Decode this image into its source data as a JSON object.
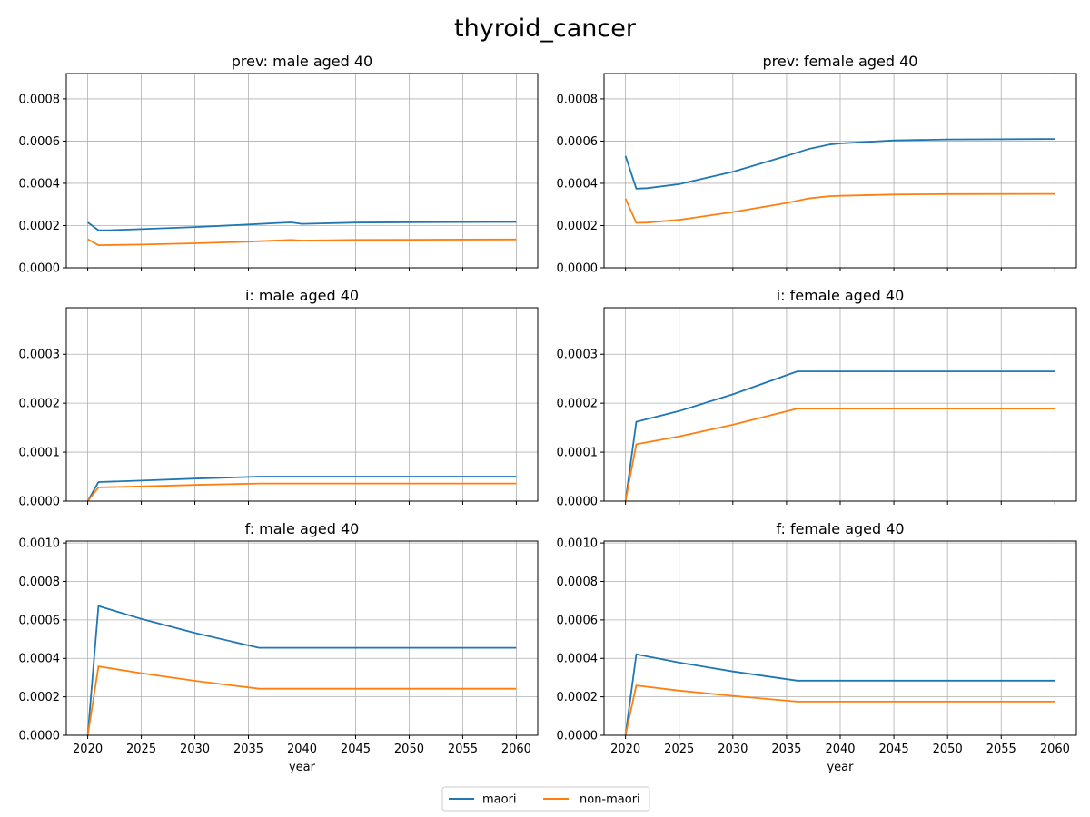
{
  "figure": {
    "title": "thyroid_cancer"
  },
  "colors": {
    "maori": "#1f77b4",
    "non_maori": "#ff7f0e",
    "grid": "#b0b0b0",
    "axes": "#000000"
  },
  "legend": {
    "placement": "bottom-center",
    "entries": [
      {
        "label": "maori",
        "color": "#1f77b4"
      },
      {
        "label": "non-maori",
        "color": "#ff7f0e"
      }
    ]
  },
  "chart_data": [
    {
      "type": "line",
      "title": "prev: male aged 40",
      "xlabel": "",
      "ylabel": "",
      "xlim": [
        2018,
        2062
      ],
      "ylim": [
        0,
        0.00092
      ],
      "xticks": [
        2020,
        2025,
        2030,
        2035,
        2040,
        2045,
        2050,
        2055,
        2060
      ],
      "yticks": [
        0,
        0.0002,
        0.0004,
        0.0006,
        0.0008
      ],
      "ytick_labels": [
        "0.0000",
        "0.0002",
        "0.0004",
        "0.0006",
        "0.0008"
      ],
      "show_xtick_labels": false,
      "grid": true,
      "series": [
        {
          "name": "maori",
          "color": "#1f77b4",
          "x": [
            2020,
            2021,
            2022,
            2025,
            2030,
            2035,
            2038,
            2039,
            2040,
            2045,
            2050,
            2060
          ],
          "y": [
            0.000215,
            0.000178,
            0.000178,
            0.000183,
            0.000193,
            0.000205,
            0.000213,
            0.000215,
            0.000208,
            0.000214,
            0.000216,
            0.000217
          ]
        },
        {
          "name": "non-maori",
          "color": "#ff7f0e",
          "x": [
            2020,
            2021,
            2025,
            2030,
            2035,
            2039,
            2040,
            2045,
            2050,
            2060
          ],
          "y": [
            0.000135,
            0.000107,
            0.00011,
            0.000116,
            0.000124,
            0.000132,
            0.000129,
            0.000132,
            0.000133,
            0.000134
          ]
        }
      ]
    },
    {
      "type": "line",
      "title": "prev: female aged 40",
      "xlabel": "",
      "ylabel": "",
      "xlim": [
        2018,
        2062
      ],
      "ylim": [
        0,
        0.00092
      ],
      "xticks": [
        2020,
        2025,
        2030,
        2035,
        2040,
        2045,
        2050,
        2055,
        2060
      ],
      "yticks": [
        0,
        0.0002,
        0.0004,
        0.0006,
        0.0008
      ],
      "ytick_labels": [
        "0.0000",
        "0.0002",
        "0.0004",
        "0.0006",
        "0.0008"
      ],
      "show_xtick_labels": false,
      "grid": true,
      "series": [
        {
          "name": "maori",
          "color": "#1f77b4",
          "x": [
            2020,
            2021,
            2022,
            2025,
            2030,
            2035,
            2037,
            2039,
            2040,
            2045,
            2050,
            2060
          ],
          "y": [
            0.00053,
            0.000375,
            0.000377,
            0.000396,
            0.000455,
            0.00053,
            0.000562,
            0.000584,
            0.000589,
            0.000603,
            0.000608,
            0.00061
          ]
        },
        {
          "name": "non-maori",
          "color": "#ff7f0e",
          "x": [
            2020,
            2021,
            2022,
            2025,
            2030,
            2035,
            2037,
            2039,
            2040,
            2045,
            2050,
            2060
          ],
          "y": [
            0.000327,
            0.000213,
            0.000214,
            0.000227,
            0.000264,
            0.000307,
            0.000328,
            0.000339,
            0.000341,
            0.000347,
            0.000349,
            0.00035
          ]
        }
      ]
    },
    {
      "type": "line",
      "title": "i: male aged 40",
      "xlabel": "",
      "ylabel": "",
      "xlim": [
        2018,
        2062
      ],
      "ylim": [
        0,
        0.000395
      ],
      "xticks": [
        2020,
        2025,
        2030,
        2035,
        2040,
        2045,
        2050,
        2055,
        2060
      ],
      "yticks": [
        0,
        0.0001,
        0.0002,
        0.0003
      ],
      "ytick_labels": [
        "0.0000",
        "0.0001",
        "0.0002",
        "0.0003"
      ],
      "show_xtick_labels": false,
      "grid": true,
      "series": [
        {
          "name": "maori",
          "color": "#1f77b4",
          "x": [
            2020,
            2021,
            2025,
            2030,
            2036,
            2040,
            2050,
            2060
          ],
          "y": [
            0,
            3.9e-05,
            4.2e-05,
            4.6e-05,
            5e-05,
            5e-05,
            5e-05,
            5e-05
          ]
        },
        {
          "name": "non-maori",
          "color": "#ff7f0e",
          "x": [
            2020,
            2021,
            2025,
            2030,
            2036,
            2040,
            2050,
            2060
          ],
          "y": [
            0,
            2.8e-05,
            3e-05,
            3.3e-05,
            3.6e-05,
            3.6e-05,
            3.6e-05,
            3.6e-05
          ]
        }
      ]
    },
    {
      "type": "line",
      "title": "i: female aged 40",
      "xlabel": "",
      "ylabel": "",
      "xlim": [
        2018,
        2062
      ],
      "ylim": [
        0,
        0.000395
      ],
      "xticks": [
        2020,
        2025,
        2030,
        2035,
        2040,
        2045,
        2050,
        2055,
        2060
      ],
      "yticks": [
        0,
        0.0001,
        0.0002,
        0.0003
      ],
      "ytick_labels": [
        "0.0000",
        "0.0001",
        "0.0002",
        "0.0003"
      ],
      "show_xtick_labels": false,
      "grid": true,
      "series": [
        {
          "name": "maori",
          "color": "#1f77b4",
          "x": [
            2020,
            2021,
            2025,
            2030,
            2036,
            2040,
            2050,
            2060
          ],
          "y": [
            0,
            0.000162,
            0.000184,
            0.000218,
            0.000265,
            0.000265,
            0.000265,
            0.000265
          ]
        },
        {
          "name": "non-maori",
          "color": "#ff7f0e",
          "x": [
            2020,
            2021,
            2025,
            2030,
            2036,
            2040,
            2050,
            2060
          ],
          "y": [
            0,
            0.000116,
            0.000132,
            0.000156,
            0.000189,
            0.000189,
            0.000189,
            0.000189
          ]
        }
      ]
    },
    {
      "type": "line",
      "title": "f: male aged 40",
      "xlabel": "year",
      "ylabel": "",
      "xlim": [
        2018,
        2062
      ],
      "ylim": [
        0,
        0.00101
      ],
      "xticks": [
        2020,
        2025,
        2030,
        2035,
        2040,
        2045,
        2050,
        2055,
        2060
      ],
      "yticks": [
        0,
        0.0002,
        0.0004,
        0.0006,
        0.0008,
        0.001
      ],
      "ytick_labels": [
        "0.0000",
        "0.0002",
        "0.0004",
        "0.0006",
        "0.0008",
        "0.0010"
      ],
      "show_xtick_labels": true,
      "grid": true,
      "series": [
        {
          "name": "maori",
          "color": "#1f77b4",
          "x": [
            2020,
            2021,
            2025,
            2030,
            2036,
            2040,
            2050,
            2060
          ],
          "y": [
            0,
            0.000672,
            0.000605,
            0.000532,
            0.000455,
            0.000455,
            0.000455,
            0.000455
          ]
        },
        {
          "name": "non-maori",
          "color": "#ff7f0e",
          "x": [
            2020,
            2021,
            2025,
            2030,
            2036,
            2040,
            2050,
            2060
          ],
          "y": [
            0,
            0.000358,
            0.000323,
            0.000283,
            0.000242,
            0.000242,
            0.000242,
            0.000242
          ]
        }
      ]
    },
    {
      "type": "line",
      "title": "f: female aged 40",
      "xlabel": "year",
      "ylabel": "",
      "xlim": [
        2018,
        2062
      ],
      "ylim": [
        0,
        0.00101
      ],
      "xticks": [
        2020,
        2025,
        2030,
        2035,
        2040,
        2045,
        2050,
        2055,
        2060
      ],
      "yticks": [
        0,
        0.0002,
        0.0004,
        0.0006,
        0.0008,
        0.001
      ],
      "ytick_labels": [
        "0.0000",
        "0.0002",
        "0.0004",
        "0.0006",
        "0.0008",
        "0.0010"
      ],
      "show_xtick_labels": true,
      "grid": true,
      "series": [
        {
          "name": "maori",
          "color": "#1f77b4",
          "x": [
            2020,
            2021,
            2025,
            2030,
            2036,
            2040,
            2050,
            2060
          ],
          "y": [
            0,
            0.000421,
            0.000378,
            0.000332,
            0.000284,
            0.000284,
            0.000284,
            0.000284
          ]
        },
        {
          "name": "non-maori",
          "color": "#ff7f0e",
          "x": [
            2020,
            2021,
            2025,
            2030,
            2036,
            2040,
            2050,
            2060
          ],
          "y": [
            0,
            0.000259,
            0.000232,
            0.000205,
            0.000175,
            0.000175,
            0.000175,
            0.000175
          ]
        }
      ]
    }
  ]
}
